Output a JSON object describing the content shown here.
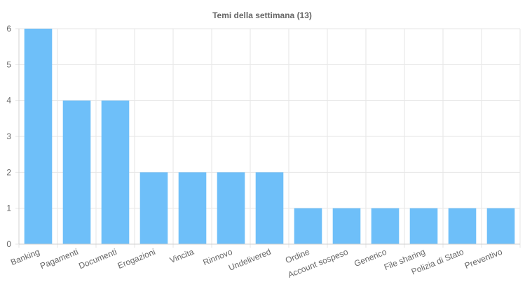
{
  "chart_data": {
    "type": "bar",
    "title": "Temi della settimana (13)",
    "xlabel": "",
    "ylabel": "",
    "categories": [
      "Banking",
      "Pagamenti",
      "Documenti",
      "Erogazioni",
      "Vincita",
      "Rinnovo",
      "Undelivered",
      "Ordine",
      "Account sospeso",
      "Generico",
      "File sharing",
      "Polizia di Stato",
      "Preventivo"
    ],
    "values": [
      6,
      4,
      4,
      2,
      2,
      2,
      2,
      1,
      1,
      1,
      1,
      1,
      1
    ],
    "ylim": [
      0,
      6
    ],
    "yticks": [
      "0",
      "1",
      "2",
      "3",
      "4",
      "5",
      "6"
    ],
    "grid": true,
    "legend": "none",
    "colors": {
      "bar": "#6ebff9",
      "grid": "#e6e6e6",
      "axis": "#d0d0d0",
      "text": "#666666",
      "title": "#666666"
    }
  }
}
